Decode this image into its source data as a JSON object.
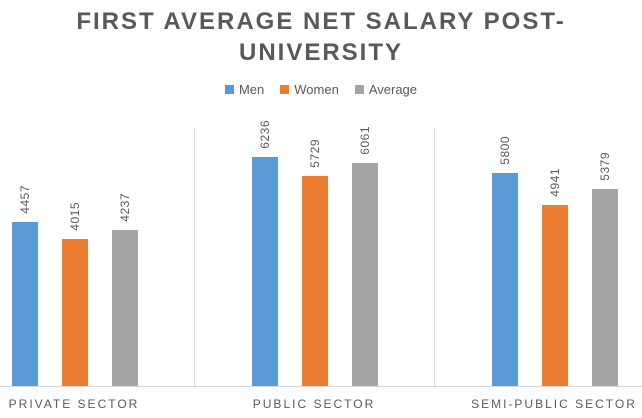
{
  "title": {
    "line1": "FIRST AVERAGE NET SALARY POST-",
    "line2": "UNIVERSITY"
  },
  "chart_data": {
    "type": "bar",
    "title": "FIRST AVERAGE NET SALARY POST-UNIVERSITY",
    "categories": [
      "PRIVATE SECTOR",
      "PUBLIC SECTOR",
      "SEMI-PUBLIC SECTOR"
    ],
    "series": [
      {
        "name": "Men",
        "color": "#5B9BD5",
        "values": [
          4457,
          6236,
          5800
        ]
      },
      {
        "name": "Women",
        "color": "#ED7D31",
        "values": [
          4015,
          5729,
          4941
        ]
      },
      {
        "name": "Average",
        "color": "#A5A5A5",
        "values": [
          4237,
          6061,
          5379
        ]
      }
    ],
    "ylim": [
      0,
      7000
    ],
    "grid": false,
    "y_axis_visible": false,
    "legend_position": "top",
    "data_labels": true,
    "data_label_rotation": -90,
    "axis_color": "#D9D9D9",
    "text_color": "#595959"
  }
}
